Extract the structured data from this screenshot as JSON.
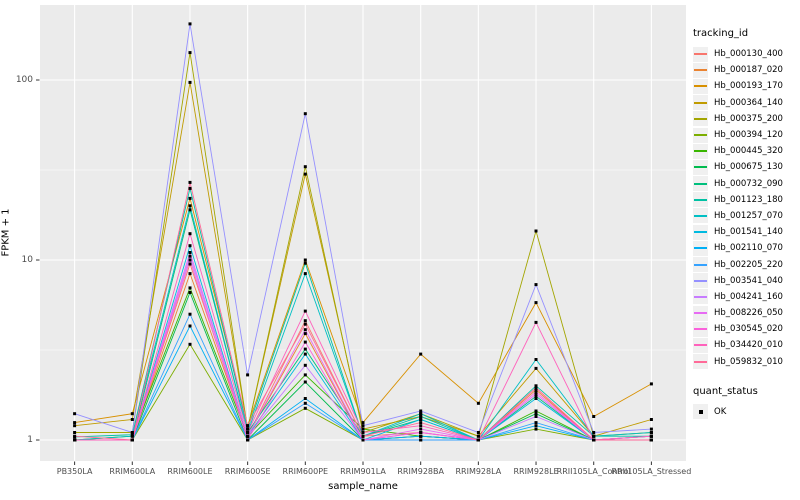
{
  "figure": {
    "background": "#FFFFFF",
    "panel_bg": "#EBEBEB",
    "grid_color": "#FFFFFF",
    "tick_color": "#333333",
    "tick_label_color": "#4D4D4D",
    "point_color": "#000000"
  },
  "axes": {
    "x": {
      "title": "sample_name"
    },
    "y": {
      "title": "FPKM + 1",
      "scale": "log10",
      "tick_values": [
        1,
        10,
        100
      ],
      "tick_labels": [
        "1",
        "10",
        "100"
      ],
      "minor_tick_values": [
        3.162,
        31.62
      ]
    }
  },
  "legend": {
    "tracking_title": "tracking_id",
    "quant_title": "quant_status",
    "quant_entries": [
      {
        "label": "OK",
        "shape": "black-square-point"
      }
    ]
  },
  "chart_data": {
    "type": "line",
    "title": "",
    "xlabel": "sample_name",
    "ylabel": "FPKM + 1",
    "yscale": "log10",
    "ylim": [
      1,
      205
    ],
    "grid": true,
    "legend_position": "right",
    "point_shape": "square",
    "categories": [
      "PB350LA",
      "RRIM600LA",
      "RRIM600LE",
      "RRIM600SE",
      "RRIM600PE",
      "RRIM901LA",
      "RRIM928BA",
      "RRIM928LA",
      "RRIM928LE",
      "RRII105LA_Control",
      "RRII105LA_Stressed"
    ],
    "series": [
      {
        "name": "Hb_000130_400",
        "color": "#F8766D",
        "values": [
          1.0,
          1.0,
          9.5,
          1.05,
          4.6,
          1.05,
          1.1,
          1.0,
          1.95,
          1.0,
          1.0
        ]
      },
      {
        "name": "Hb_000187_020",
        "color": "#EA8331",
        "values": [
          1.0,
          1.0,
          8.4,
          1.05,
          3.9,
          1.0,
          1.05,
          1.0,
          1.9,
          1.0,
          1.0
        ]
      },
      {
        "name": "Hb_000193_170",
        "color": "#D89000",
        "values": [
          1.25,
          1.4,
          22,
          1.2,
          10,
          1.25,
          3.0,
          1.6,
          5.8,
          1.35,
          2.05
        ]
      },
      {
        "name": "Hb_000364_140",
        "color": "#C09B00",
        "values": [
          1.2,
          1.3,
          97,
          1.15,
          30,
          1.15,
          1.35,
          1.05,
          2.5,
          1.05,
          1.3
        ]
      },
      {
        "name": "Hb_000375_200",
        "color": "#A3A500",
        "values": [
          1.1,
          1.1,
          142,
          1.15,
          33,
          1.1,
          1.4,
          1.05,
          14.5,
          1.05,
          1.1
        ]
      },
      {
        "name": "Hb_000394_120",
        "color": "#7CAE00",
        "values": [
          1.0,
          1.0,
          3.4,
          1.0,
          1.5,
          1.0,
          1.0,
          1.0,
          1.15,
          1.0,
          1.0
        ]
      },
      {
        "name": "Hb_000445_320",
        "color": "#39B600",
        "values": [
          1.0,
          1.05,
          7.0,
          1.05,
          2.3,
          1.15,
          1.05,
          1.0,
          1.45,
          1.0,
          1.0
        ]
      },
      {
        "name": "Hb_000675_130",
        "color": "#00BB4E",
        "values": [
          1.0,
          1.0,
          6.6,
          1.0,
          2.1,
          1.0,
          1.05,
          1.0,
          1.4,
          1.0,
          1.0
        ]
      },
      {
        "name": "Hb_000732_090",
        "color": "#00BF7D",
        "values": [
          1.0,
          1.0,
          19,
          1.1,
          3.2,
          1.05,
          1.3,
          1.0,
          1.75,
          1.0,
          1.05
        ]
      },
      {
        "name": "Hb_001123_180",
        "color": "#00C1A3",
        "values": [
          1.04,
          1.07,
          25,
          1.15,
          9.6,
          1.05,
          1.35,
          1.0,
          2.0,
          1.05,
          1.05
        ]
      },
      {
        "name": "Hb_001257_070",
        "color": "#00BFC4",
        "values": [
          1.0,
          1.05,
          20,
          1.1,
          8.4,
          1.05,
          1.4,
          1.0,
          2.8,
          1.05,
          1.1
        ]
      },
      {
        "name": "Hb_001541_140",
        "color": "#00BAE0",
        "values": [
          1.0,
          1.0,
          12,
          1.05,
          3.0,
          1.0,
          1.3,
          1.0,
          1.7,
          1.0,
          1.05
        ]
      },
      {
        "name": "Hb_002110_070",
        "color": "#00B0F6",
        "values": [
          1.0,
          1.0,
          4.3,
          1.0,
          1.7,
          1.0,
          1.05,
          1.0,
          1.2,
          1.0,
          1.0
        ]
      },
      {
        "name": "Hb_002205_220",
        "color": "#35A2FF",
        "values": [
          1.0,
          1.0,
          5.0,
          1.0,
          1.6,
          1.0,
          1.0,
          1.0,
          1.25,
          1.0,
          1.0
        ]
      },
      {
        "name": "Hb_003541_040",
        "color": "#9590FF",
        "values": [
          1.4,
          1.1,
          205,
          2.3,
          65,
          1.2,
          1.45,
          1.1,
          7.3,
          1.1,
          1.15
        ]
      },
      {
        "name": "Hb_004241_160",
        "color": "#C77CFF",
        "values": [
          1.0,
          1.0,
          10.5,
          1.05,
          2.6,
          1.0,
          1.1,
          1.0,
          1.35,
          1.0,
          1.0
        ]
      },
      {
        "name": "Hb_008226_050",
        "color": "#E76BF3",
        "values": [
          1.0,
          1.0,
          11,
          1.05,
          4.1,
          1.0,
          1.15,
          1.0,
          1.8,
          1.0,
          1.0
        ]
      },
      {
        "name": "Hb_030545_020",
        "color": "#FA62DB",
        "values": [
          1.0,
          1.0,
          10,
          1.0,
          3.5,
          1.0,
          1.1,
          1.0,
          1.85,
          1.0,
          1.05
        ]
      },
      {
        "name": "Hb_034420_010",
        "color": "#FF62BC",
        "values": [
          1.0,
          1.0,
          14,
          1.1,
          5.2,
          1.1,
          1.2,
          1.0,
          4.5,
          1.0,
          1.05
        ]
      },
      {
        "name": "Hb_059832_010",
        "color": "#FF6A98",
        "values": [
          1.05,
          1.0,
          27,
          1.2,
          4.4,
          1.05,
          1.25,
          1.0,
          1.95,
          1.0,
          1.0
        ]
      }
    ]
  }
}
